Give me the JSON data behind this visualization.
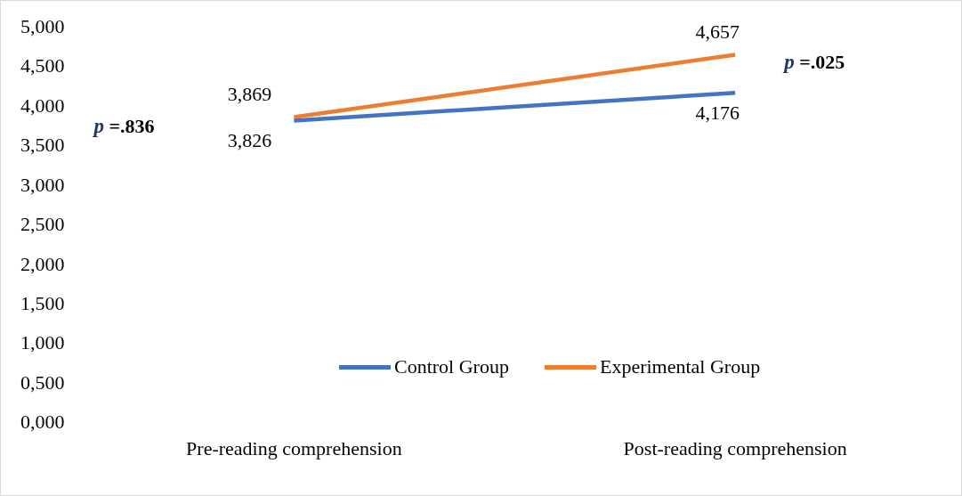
{
  "chart_data": {
    "type": "line",
    "categories": [
      "Pre-reading comprehension",
      "Post-reading comprehension"
    ],
    "series": [
      {
        "name": "Control Group",
        "color": "#4472c4",
        "values": [
          3.826,
          4.176
        ],
        "value_labels": [
          "3,826",
          "4,176"
        ]
      },
      {
        "name": "Experimental Group",
        "color": "#ed7d31",
        "values": [
          3.869,
          4.657
        ],
        "value_labels": [
          "3,869",
          "4,657"
        ]
      }
    ],
    "ylim": [
      0,
      5
    ],
    "yticks": [
      {
        "value": 0,
        "label": "0,000"
      },
      {
        "value": 0.5,
        "label": "0,500"
      },
      {
        "value": 1,
        "label": "1,000"
      },
      {
        "value": 1.5,
        "label": "1,500"
      },
      {
        "value": 2,
        "label": "2,000"
      },
      {
        "value": 2.5,
        "label": "2,500"
      },
      {
        "value": 3,
        "label": "3,000"
      },
      {
        "value": 3.5,
        "label": "3,500"
      },
      {
        "value": 4,
        "label": "4,000"
      },
      {
        "value": 4.5,
        "label": "4,500"
      },
      {
        "value": 5,
        "label": "5,000"
      }
    ],
    "annotations": [
      "p =.836",
      "p =.025"
    ],
    "grid": false,
    "legend": "bottom",
    "marker": "none",
    "line_style": "solid"
  }
}
